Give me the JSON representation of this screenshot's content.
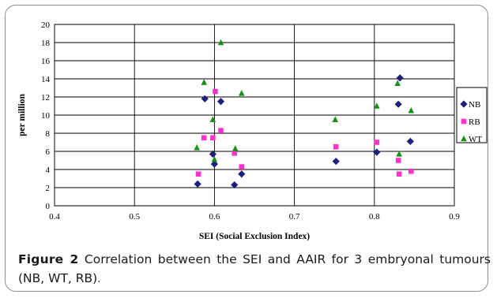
{
  "chart_data": {
    "type": "scatter",
    "xlabel": "SEI (Social Exclusion Index)",
    "ylabel": "per million",
    "xlim": [
      0.4,
      0.9
    ],
    "ylim": [
      0,
      20
    ],
    "xticks": [
      "0.4",
      "0.5",
      "0.6",
      "0.7",
      "0.8",
      "0.9"
    ],
    "yticks": [
      "0",
      "2",
      "4",
      "6",
      "8",
      "10",
      "12",
      "14",
      "16",
      "18",
      "20"
    ],
    "grid": "horizontal and vertical",
    "legend": "right",
    "series": [
      {
        "name": "NB",
        "marker": "diamond",
        "color": "#1f1f7a",
        "points": [
          [
            0.579,
            2.4
          ],
          [
            0.588,
            11.8
          ],
          [
            0.598,
            5.7
          ],
          [
            0.6,
            4.6
          ],
          [
            0.608,
            11.5
          ],
          [
            0.625,
            2.3
          ],
          [
            0.634,
            3.5
          ],
          [
            0.752,
            4.9
          ],
          [
            0.803,
            5.9
          ],
          [
            0.83,
            11.2
          ],
          [
            0.832,
            14.1
          ],
          [
            0.845,
            7.1
          ]
        ]
      },
      {
        "name": "RB",
        "marker": "square",
        "color": "#ff33cc",
        "points": [
          [
            0.58,
            3.5
          ],
          [
            0.587,
            7.5
          ],
          [
            0.598,
            7.5
          ],
          [
            0.601,
            12.6
          ],
          [
            0.608,
            8.3
          ],
          [
            0.625,
            5.8
          ],
          [
            0.634,
            4.3
          ],
          [
            0.752,
            6.5
          ],
          [
            0.803,
            7.0
          ],
          [
            0.83,
            5.0
          ],
          [
            0.831,
            3.5
          ],
          [
            0.846,
            3.8
          ]
        ]
      },
      {
        "name": "WT",
        "marker": "triangle",
        "color": "#1a8f1a",
        "points": [
          [
            0.578,
            6.4
          ],
          [
            0.587,
            13.6
          ],
          [
            0.598,
            9.5
          ],
          [
            0.6,
            5.1
          ],
          [
            0.608,
            18.0
          ],
          [
            0.626,
            6.3
          ],
          [
            0.634,
            12.4
          ],
          [
            0.751,
            9.5
          ],
          [
            0.803,
            11.0
          ],
          [
            0.829,
            13.5
          ],
          [
            0.831,
            5.7
          ],
          [
            0.846,
            10.5
          ]
        ]
      }
    ]
  },
  "caption": {
    "label": "Figure 2",
    "text": "Correlation between the SEI and AAIR for 3 embryonal tumours (NB, WT, RB)",
    "end": "."
  }
}
